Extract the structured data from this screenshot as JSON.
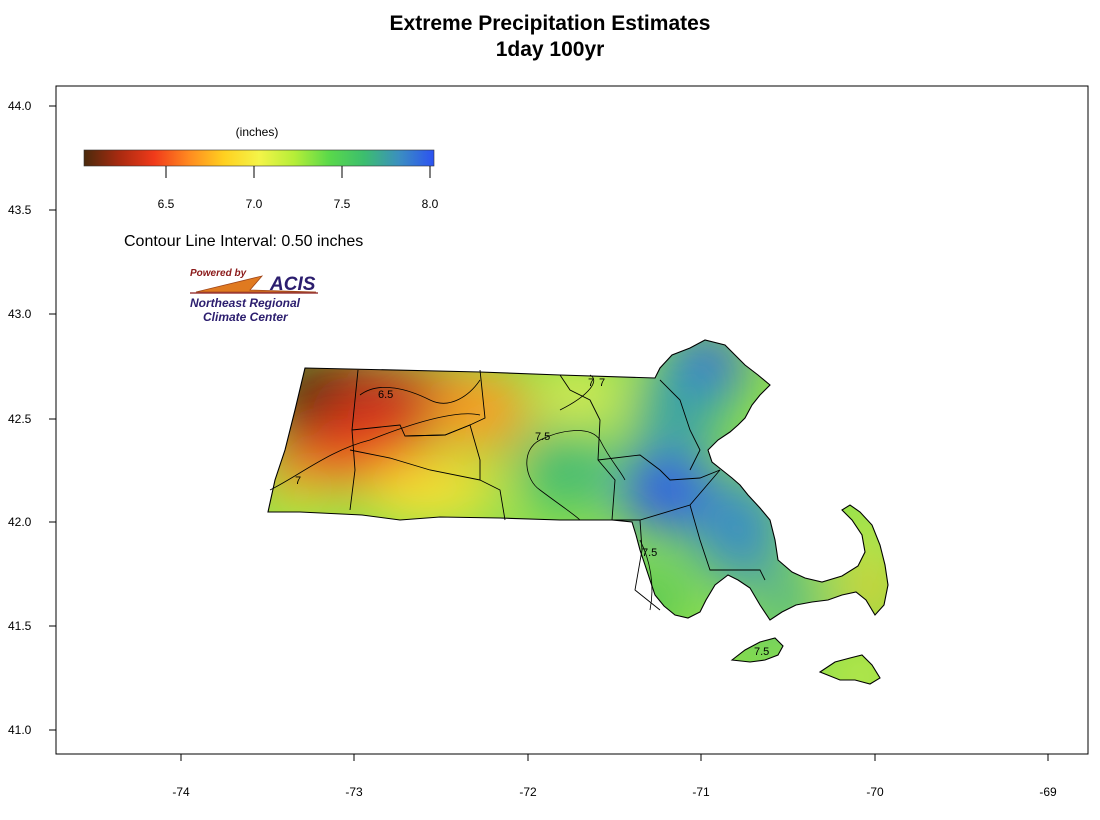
{
  "title": "Extreme Precipitation Estimates",
  "subtitle": "1day 100yr",
  "map": {
    "x_range": [
      -74.75,
      -68.8
    ],
    "y_range": [
      40.9,
      44.1
    ],
    "x_ticks": [
      "-74",
      "-73",
      "-72",
      "-71",
      "-70",
      "-69"
    ],
    "y_ticks": [
      "44.0",
      "43.5",
      "43.0",
      "42.5",
      "42.0",
      "41.5",
      "41.0"
    ],
    "region": "Massachusetts"
  },
  "legend": {
    "unit_label": "(inches)",
    "tick_labels": [
      "6.5",
      "7.0",
      "7.5",
      "8.0"
    ],
    "range": [
      6.0,
      8.0
    ],
    "colors": [
      "#4a2a0c",
      "#a82a10",
      "#f03a1a",
      "#ff8a20",
      "#ffd020",
      "#f4f448",
      "#b6ee38",
      "#5ad94a",
      "#3cbe6e",
      "#3b8fc0",
      "#2c52f2"
    ]
  },
  "contour_info": "Contour Line Interval: 0.50 inches",
  "contour_labels": [
    "6.5",
    "7",
    "7.5",
    "7.5",
    "7.5",
    "7",
    "7"
  ],
  "logo": {
    "powered_by": "Powered by",
    "name": "ACIS",
    "line1": "Northeast Regional",
    "line2": "Climate Center"
  }
}
